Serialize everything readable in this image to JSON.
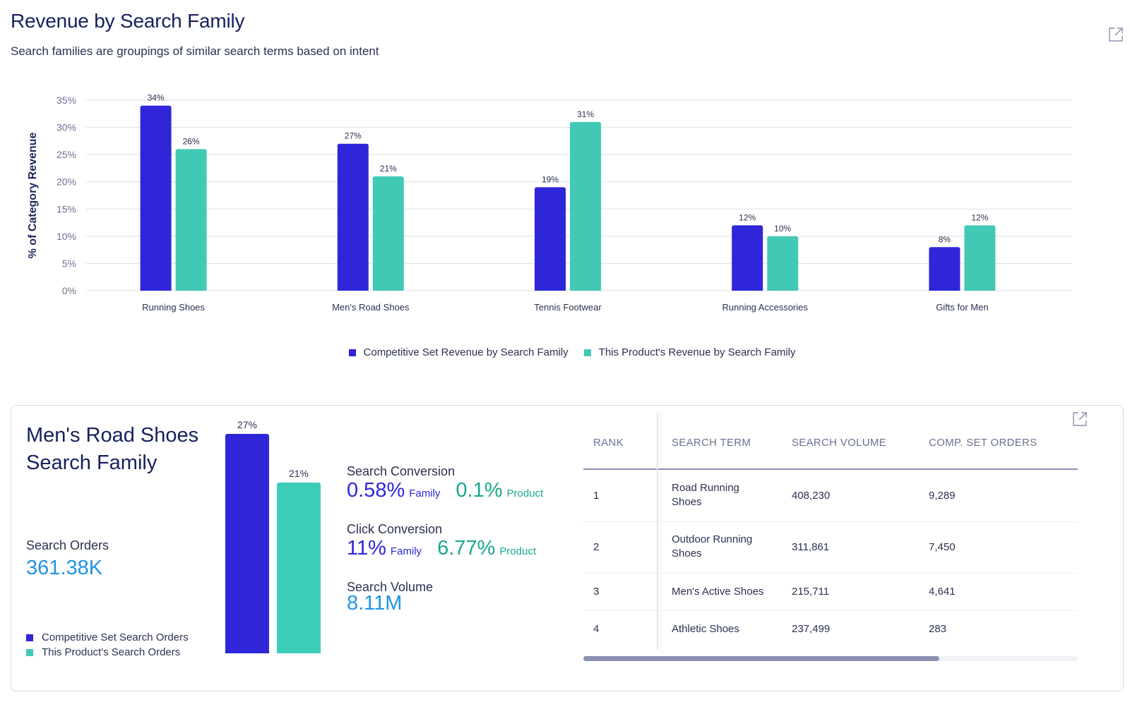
{
  "header": {
    "title": "Revenue by Search Family",
    "subtitle": "Search families are groupings of similar search terms based on intent"
  },
  "colors": {
    "competitive": "#2e26d8",
    "product": "#42c9b6",
    "grid": "#dcdfe8",
    "axis_text": "#6b7194"
  },
  "icons": {
    "top_expand": "external-link-icon",
    "card_expand": "external-link-icon"
  },
  "chart_data": {
    "type": "bar",
    "title": "",
    "xlabel": "",
    "ylabel": "% of Category Revenue",
    "ylim": [
      0,
      35
    ],
    "yticks": [
      "0%",
      "5%",
      "10%",
      "15%",
      "20%",
      "25%",
      "30%",
      "35%"
    ],
    "ytick_values": [
      0,
      5,
      10,
      15,
      20,
      25,
      30,
      35
    ],
    "grid": true,
    "legend_position": "bottom-center",
    "categories": [
      "Running Shoes",
      "Men's Road Shoes",
      "Tennis Footwear",
      "Running Accessories",
      "Gifts for Men"
    ],
    "series": [
      {
        "name": "Competitive Set Revenue by Search Family",
        "values": [
          34,
          27,
          19,
          12,
          8
        ],
        "labels": [
          "34%",
          "27%",
          "19%",
          "12%",
          "8%"
        ]
      },
      {
        "name": "This Product's Revenue by Search Family",
        "values": [
          26,
          21,
          31,
          10,
          12
        ],
        "labels": [
          "26%",
          "21%",
          "31%",
          "10%",
          "12%"
        ]
      }
    ]
  },
  "family_card": {
    "title": "Men's Road Shoes Search Family",
    "search_orders_label": "Search Orders",
    "search_orders_value": "361.38K",
    "legend": [
      "Competitive Set Search Orders",
      "This Product's Search Orders"
    ],
    "mini_chart": {
      "competitive_value": 27,
      "competitive_label": "27%",
      "product_value": 21,
      "product_label": "21%"
    },
    "search_conversion": {
      "label": "Search Conversion",
      "family_value": "0.58%",
      "family_tag": "Family",
      "product_value": "0.1%",
      "product_tag": "Product"
    },
    "click_conversion": {
      "label": "Click Conversion",
      "family_value": "11%",
      "family_tag": "Family",
      "product_value": "6.77%",
      "product_tag": "Product"
    },
    "search_volume": {
      "label": "Search Volume",
      "value": "8.11M"
    },
    "table": {
      "columns": [
        "RANK",
        "SEARCH TERM",
        "SEARCH VOLUME",
        "COMP. SET ORDERS"
      ],
      "rows": [
        {
          "rank": "1",
          "term": "Road Running Shoes",
          "volume": "408,230",
          "orders": "9,289"
        },
        {
          "rank": "2",
          "term": "Outdoor Running Shoes",
          "volume": "311,861",
          "orders": "7,450"
        },
        {
          "rank": "3",
          "term": "Men's Active Shoes",
          "volume": "215,711",
          "orders": "4,641"
        },
        {
          "rank": "4",
          "term": "Athletic Shoes",
          "volume": "237,499",
          "orders": "283"
        }
      ],
      "scroll_fraction": 0.72
    }
  }
}
